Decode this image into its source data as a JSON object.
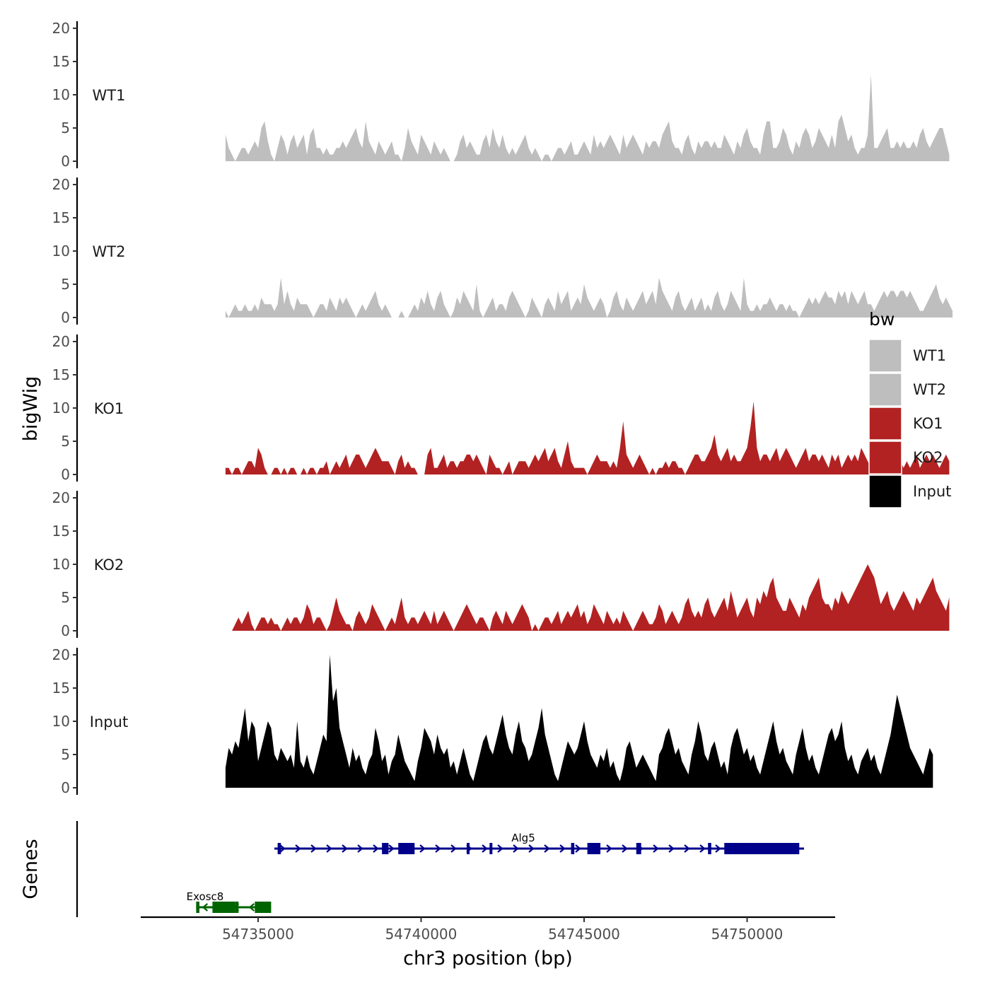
{
  "chart_data": {
    "type": "area",
    "ylabel": "bigWig",
    "xlabel": "chr3 position (bp)",
    "genes_label": "Genes",
    "y_ticks": [
      "0",
      "5",
      "10",
      "15",
      "20"
    ],
    "ylim": [
      0,
      20
    ],
    "xlim": [
      54731400,
      54752700
    ],
    "x_ticks": [
      {
        "value": 54735000,
        "label": "54735000"
      },
      {
        "value": 54740000,
        "label": "54740000"
      },
      {
        "value": 54745000,
        "label": "54745000"
      },
      {
        "value": 54750000,
        "label": "54750000"
      }
    ],
    "legend": {
      "title": "bw",
      "position": "right",
      "items": [
        {
          "label": "WT1",
          "color": "#bebebe"
        },
        {
          "label": "WT2",
          "color": "#bebebe"
        },
        {
          "label": "KO1",
          "color": "#b22222"
        },
        {
          "label": "KO2",
          "color": "#b22222"
        },
        {
          "label": "Input",
          "color": "#000000"
        }
      ]
    },
    "x_start": 54734000,
    "x_step": 100,
    "series": [
      {
        "name": "WT1",
        "color": "#bebebe",
        "values": [
          4,
          2,
          1,
          0,
          1,
          2,
          2,
          1,
          2,
          3,
          2,
          5,
          6,
          3,
          1,
          0,
          2,
          4,
          3,
          1,
          3,
          4,
          2,
          3,
          4,
          1,
          4,
          5,
          2,
          2,
          1,
          2,
          1,
          1,
          2,
          2,
          3,
          2,
          3,
          4,
          5,
          3,
          2,
          6,
          3,
          2,
          1,
          3,
          2,
          1,
          2,
          3,
          1,
          1,
          0,
          2,
          5,
          3,
          2,
          1,
          4,
          3,
          2,
          1,
          3,
          2,
          1,
          2,
          1,
          0,
          0,
          1,
          3,
          4,
          2,
          3,
          2,
          1,
          1,
          3,
          4,
          2,
          5,
          3,
          2,
          4,
          2,
          1,
          2,
          1,
          2,
          3,
          4,
          2,
          1,
          2,
          1,
          0,
          1,
          1,
          0,
          1,
          2,
          2,
          1,
          2,
          3,
          1,
          1,
          2,
          3,
          2,
          1,
          4,
          2,
          3,
          2,
          3,
          4,
          3,
          2,
          1,
          4,
          2,
          3,
          4,
          3,
          2,
          1,
          3,
          2,
          3,
          3,
          2,
          4,
          5,
          6,
          3,
          2,
          2,
          1,
          3,
          4,
          2,
          1,
          3,
          2,
          3,
          3,
          2,
          3,
          2,
          2,
          4,
          3,
          2,
          1,
          3,
          2,
          4,
          5,
          3,
          2,
          2,
          1,
          4,
          6,
          6,
          2,
          2,
          3,
          5,
          4,
          2,
          1,
          3,
          2,
          4,
          5,
          4,
          2,
          3,
          5,
          4,
          3,
          2,
          4,
          2,
          6,
          7,
          5,
          3,
          4,
          2,
          1,
          2,
          2,
          4,
          13,
          2,
          2,
          3,
          4,
          5,
          2,
          2,
          3,
          2,
          3,
          2,
          2,
          3,
          2,
          4,
          5,
          3,
          2,
          3,
          4,
          5,
          5,
          3,
          1
        ]
      },
      {
        "name": "WT2",
        "color": "#bebebe",
        "values": [
          1,
          0,
          1,
          2,
          1,
          1,
          2,
          1,
          1,
          2,
          1,
          3,
          2,
          2,
          2,
          1,
          2,
          6,
          2,
          4,
          2,
          1,
          3,
          2,
          2,
          2,
          1,
          0,
          1,
          2,
          2,
          1,
          3,
          2,
          1,
          3,
          2,
          3,
          2,
          1,
          0,
          1,
          2,
          1,
          2,
          3,
          4,
          2,
          1,
          2,
          1,
          0,
          0,
          0,
          1,
          0,
          0,
          1,
          2,
          1,
          3,
          2,
          4,
          2,
          1,
          3,
          4,
          2,
          1,
          0,
          1,
          3,
          2,
          4,
          3,
          2,
          1,
          5,
          1,
          0,
          1,
          2,
          3,
          1,
          2,
          2,
          1,
          3,
          4,
          3,
          2,
          1,
          0,
          1,
          3,
          2,
          1,
          0,
          2,
          3,
          2,
          1,
          4,
          2,
          3,
          4,
          1,
          2,
          3,
          2,
          5,
          3,
          2,
          1,
          2,
          3,
          2,
          0,
          1,
          3,
          4,
          2,
          1,
          3,
          2,
          1,
          2,
          3,
          4,
          2,
          3,
          4,
          2,
          6,
          4,
          3,
          2,
          1,
          3,
          4,
          2,
          1,
          2,
          3,
          1,
          2,
          3,
          1,
          2,
          1,
          3,
          4,
          2,
          1,
          2,
          4,
          3,
          2,
          1,
          6,
          2,
          1,
          1,
          2,
          1,
          2,
          2,
          3,
          2,
          1,
          2,
          2,
          1,
          2,
          1,
          1,
          0,
          1,
          2,
          3,
          2,
          3,
          2,
          3,
          4,
          3,
          3,
          2,
          4,
          3,
          4,
          2,
          4,
          3,
          2,
          3,
          4,
          2,
          2,
          1,
          2,
          3,
          4,
          3,
          4,
          4,
          3,
          4,
          4,
          3,
          4,
          3,
          2,
          1,
          1,
          2,
          3,
          4,
          5,
          3,
          2,
          3,
          2,
          1
        ]
      },
      {
        "name": "KO1",
        "color": "#b22222",
        "values": [
          1,
          1,
          0,
          1,
          1,
          0,
          1,
          2,
          2,
          1,
          4,
          3,
          1,
          0,
          0,
          1,
          1,
          0,
          1,
          0,
          1,
          1,
          0,
          0,
          1,
          0,
          1,
          1,
          0,
          1,
          1,
          2,
          0,
          1,
          2,
          1,
          2,
          3,
          1,
          2,
          3,
          3,
          2,
          1,
          2,
          3,
          4,
          3,
          2,
          2,
          2,
          1,
          0,
          2,
          3,
          1,
          2,
          1,
          1,
          0,
          0,
          0,
          3,
          4,
          1,
          1,
          2,
          3,
          1,
          2,
          2,
          1,
          2,
          2,
          3,
          3,
          2,
          3,
          2,
          1,
          0,
          3,
          2,
          1,
          1,
          0,
          1,
          2,
          0,
          1,
          2,
          2,
          2,
          1,
          2,
          3,
          2,
          3,
          4,
          2,
          3,
          4,
          2,
          1,
          3,
          5,
          2,
          1,
          1,
          1,
          1,
          0,
          1,
          2,
          3,
          2,
          2,
          2,
          1,
          2,
          1,
          4,
          8,
          3,
          2,
          1,
          2,
          3,
          2,
          1,
          0,
          1,
          0,
          1,
          1,
          2,
          1,
          2,
          2,
          1,
          1,
          0,
          1,
          2,
          3,
          3,
          2,
          2,
          3,
          4,
          6,
          3,
          2,
          3,
          4,
          2,
          3,
          2,
          2,
          3,
          4,
          7,
          11,
          4,
          2,
          3,
          3,
          2,
          3,
          4,
          2,
          3,
          4,
          3,
          2,
          1,
          2,
          3,
          4,
          2,
          3,
          3,
          2,
          3,
          2,
          1,
          3,
          2,
          3,
          1,
          2,
          3,
          2,
          3,
          2,
          4,
          3,
          2,
          1,
          3,
          2,
          3,
          2,
          1,
          2,
          2,
          3,
          2,
          1,
          2,
          1,
          2,
          3,
          1,
          2,
          3,
          2,
          3,
          2,
          1,
          2,
          3,
          2
        ]
      },
      {
        "name": "KO2",
        "color": "#b22222",
        "values": [
          0,
          0,
          0,
          1,
          2,
          1,
          2,
          3,
          1,
          0,
          1,
          2,
          2,
          1,
          2,
          1,
          1,
          0,
          1,
          2,
          1,
          2,
          2,
          1,
          2,
          4,
          3,
          1,
          2,
          2,
          1,
          0,
          1,
          3,
          5,
          3,
          2,
          1,
          1,
          0,
          2,
          3,
          2,
          1,
          2,
          4,
          3,
          2,
          1,
          0,
          1,
          2,
          1,
          3,
          5,
          2,
          1,
          2,
          2,
          1,
          2,
          3,
          2,
          1,
          3,
          1,
          2,
          3,
          2,
          1,
          0,
          1,
          2,
          3,
          4,
          3,
          2,
          1,
          2,
          2,
          1,
          0,
          2,
          3,
          2,
          1,
          3,
          2,
          1,
          2,
          3,
          4,
          3,
          2,
          0,
          1,
          0,
          1,
          2,
          2,
          1,
          2,
          3,
          1,
          2,
          3,
          2,
          3,
          4,
          2,
          3,
          1,
          2,
          4,
          3,
          2,
          1,
          3,
          2,
          1,
          2,
          1,
          3,
          2,
          1,
          0,
          1,
          2,
          3,
          2,
          1,
          1,
          2,
          4,
          3,
          1,
          2,
          3,
          2,
          1,
          2,
          4,
          5,
          3,
          2,
          3,
          2,
          4,
          5,
          3,
          2,
          3,
          4,
          5,
          3,
          6,
          4,
          2,
          3,
          4,
          5,
          3,
          2,
          5,
          4,
          6,
          5,
          7,
          8,
          5,
          4,
          3,
          3,
          5,
          4,
          3,
          2,
          4,
          3,
          5,
          6,
          7,
          8,
          5,
          4,
          4,
          3,
          5,
          4,
          6,
          5,
          4,
          5,
          6,
          7,
          8,
          9,
          10,
          9,
          8,
          6,
          4,
          5,
          6,
          4,
          3,
          4,
          5,
          6,
          5,
          4,
          3,
          5,
          4,
          5,
          6,
          7,
          8,
          6,
          5,
          4,
          3,
          5
        ]
      },
      {
        "name": "Input",
        "color": "#000000",
        "values": [
          3,
          6,
          5,
          7,
          6,
          9,
          12,
          7,
          10,
          9,
          4,
          6,
          8,
          10,
          9,
          5,
          4,
          6,
          5,
          4,
          5,
          3,
          10,
          4,
          3,
          5,
          3,
          2,
          4,
          6,
          8,
          7,
          20,
          13,
          15,
          9,
          7,
          5,
          3,
          6,
          4,
          5,
          3,
          2,
          4,
          5,
          9,
          7,
          4,
          5,
          2,
          4,
          5,
          8,
          6,
          4,
          3,
          2,
          1,
          4,
          6,
          9,
          8,
          7,
          5,
          8,
          6,
          5,
          6,
          3,
          4,
          2,
          4,
          6,
          4,
          2,
          1,
          3,
          5,
          7,
          8,
          6,
          5,
          7,
          9,
          11,
          8,
          6,
          5,
          8,
          10,
          7,
          6,
          4,
          5,
          7,
          9,
          12,
          8,
          6,
          4,
          2,
          1,
          3,
          5,
          7,
          6,
          5,
          6,
          8,
          10,
          7,
          5,
          4,
          3,
          5,
          4,
          6,
          3,
          4,
          2,
          1,
          3,
          6,
          7,
          5,
          3,
          4,
          5,
          4,
          3,
          2,
          1,
          5,
          6,
          8,
          9,
          7,
          5,
          6,
          4,
          3,
          2,
          5,
          7,
          10,
          8,
          5,
          4,
          6,
          7,
          5,
          3,
          4,
          2,
          6,
          8,
          9,
          7,
          5,
          6,
          4,
          5,
          3,
          2,
          4,
          6,
          8,
          10,
          7,
          5,
          6,
          4,
          3,
          2,
          5,
          7,
          9,
          6,
          4,
          5,
          3,
          2,
          4,
          6,
          8,
          9,
          7,
          8,
          10,
          6,
          4,
          5,
          3,
          2,
          4,
          5,
          6,
          4,
          5,
          3,
          2,
          4,
          6,
          8,
          11,
          14,
          12,
          10,
          8,
          6,
          5,
          4,
          3,
          2,
          4,
          6,
          5
        ]
      }
    ],
    "genes": [
      {
        "name": "Alg5",
        "strand": "+",
        "color": "#00008b",
        "start": 54735500,
        "end": 54752700,
        "exons": [
          [
            54735600,
            54735700
          ],
          [
            54738800,
            54739000
          ],
          [
            54739300,
            54739800
          ],
          [
            54741400,
            54741450
          ],
          [
            54742100,
            54742150
          ],
          [
            54744600,
            54744700
          ],
          [
            54745100,
            54745500
          ],
          [
            54746600,
            54746750
          ],
          [
            54748800,
            54748900
          ],
          [
            54749300,
            54750000
          ],
          [
            54750000,
            54751600
          ]
        ]
      },
      {
        "name": "Exosc8",
        "strand": "-",
        "color": "#006400",
        "start": 54733100,
        "end": 54735400,
        "exons": [
          [
            54733100,
            54733200
          ],
          [
            54733600,
            54734300
          ],
          [
            54734300,
            54734400
          ],
          [
            54734900,
            54735400
          ]
        ]
      }
    ]
  }
}
